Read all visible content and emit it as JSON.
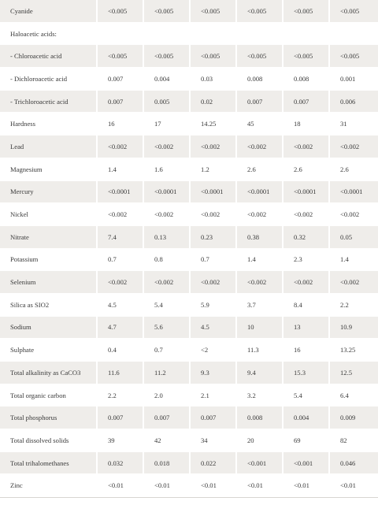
{
  "table": {
    "rows": [
      {
        "label": "Cyanide",
        "values": [
          "<0.005",
          "<0.005",
          "<0.005",
          "<0.005",
          "<0.005",
          "<0.005"
        ]
      },
      {
        "label": "Haloacetic acids:",
        "values": []
      },
      {
        "label": "- Chloroacetic acid",
        "values": [
          "<0.005",
          "<0.005",
          "<0.005",
          "<0.005",
          "<0.005",
          "<0.005"
        ]
      },
      {
        "label": "- Dichloroacetic acid",
        "values": [
          "0.007",
          "0.004",
          "0.03",
          "0.008",
          "0.008",
          "0.001"
        ]
      },
      {
        "label": "- Trichloroacetic acid",
        "values": [
          "0.007",
          "0.005",
          "0.02",
          "0.007",
          "0.007",
          "0.006"
        ]
      },
      {
        "label": "Hardness",
        "values": [
          "16",
          "17",
          "14.25",
          "45",
          "18",
          "31"
        ]
      },
      {
        "label": "Lead",
        "values": [
          "<0.002",
          "<0.002",
          "<0.002",
          "<0.002",
          "<0.002",
          "<0.002"
        ]
      },
      {
        "label": "Magnesium",
        "values": [
          "1.4",
          "1.6",
          "1.2",
          "2.6",
          "2.6",
          "2.6"
        ]
      },
      {
        "label": "Mercury",
        "values": [
          "<0.0001",
          "<0.0001",
          "<0.0001",
          "<0.0001",
          "<0.0001",
          "<0.0001"
        ]
      },
      {
        "label": "Nickel",
        "values": [
          "<0.002",
          "<0.002",
          "<0.002",
          "<0.002",
          "<0.002",
          "<0.002"
        ]
      },
      {
        "label": "Nitrate",
        "values": [
          "7.4",
          "0.13",
          "0.23",
          "0.38",
          "0.32",
          "0.05"
        ]
      },
      {
        "label": "Potassium",
        "values": [
          "0.7",
          "0.8",
          "0.7",
          "1.4",
          "2.3",
          "1.4"
        ]
      },
      {
        "label": "Selenium",
        "values": [
          "<0.002",
          "<0.002",
          "<0.002",
          "<0.002",
          "<0.002",
          "<0.002"
        ]
      },
      {
        "label": "Silica as SIO2",
        "values": [
          "4.5",
          "5.4",
          "5.9",
          "3.7",
          "8.4",
          "2.2"
        ]
      },
      {
        "label": "Sodium",
        "values": [
          "4.7",
          "5.6",
          "4.5",
          "10",
          "13",
          "10.9"
        ]
      },
      {
        "label": "Sulphate",
        "values": [
          "0.4",
          "0.7",
          "<2",
          "11.3",
          "16",
          "13.25"
        ]
      },
      {
        "label": "Total alkalinity as CaCO3",
        "values": [
          "11.6",
          "11.2",
          "9.3",
          "9.4",
          "15.3",
          "12.5"
        ]
      },
      {
        "label": "Total organic carbon",
        "values": [
          "2.2",
          "2.0",
          "2.1",
          "3.2",
          "5.4",
          "6.4"
        ]
      },
      {
        "label": "Total phosphorus",
        "values": [
          "0.007",
          "0.007",
          "0.007",
          "0.008",
          "0.004",
          "0.009"
        ]
      },
      {
        "label": "Total dissolved solids",
        "values": [
          "39",
          "42",
          "34",
          "20",
          "69",
          "82"
        ]
      },
      {
        "label": "Total trihalomethanes",
        "values": [
          "0.032",
          "0.018",
          "0.022",
          "<0.001",
          "<0.001",
          "0.046"
        ]
      },
      {
        "label": "Zinc",
        "values": [
          "<0.01",
          "<0.01",
          "<0.01",
          "<0.01",
          "<0.01",
          "<0.01"
        ]
      }
    ]
  },
  "style": {
    "shaded_row_color": "#efedea",
    "text_color": "#3a3a3a"
  }
}
